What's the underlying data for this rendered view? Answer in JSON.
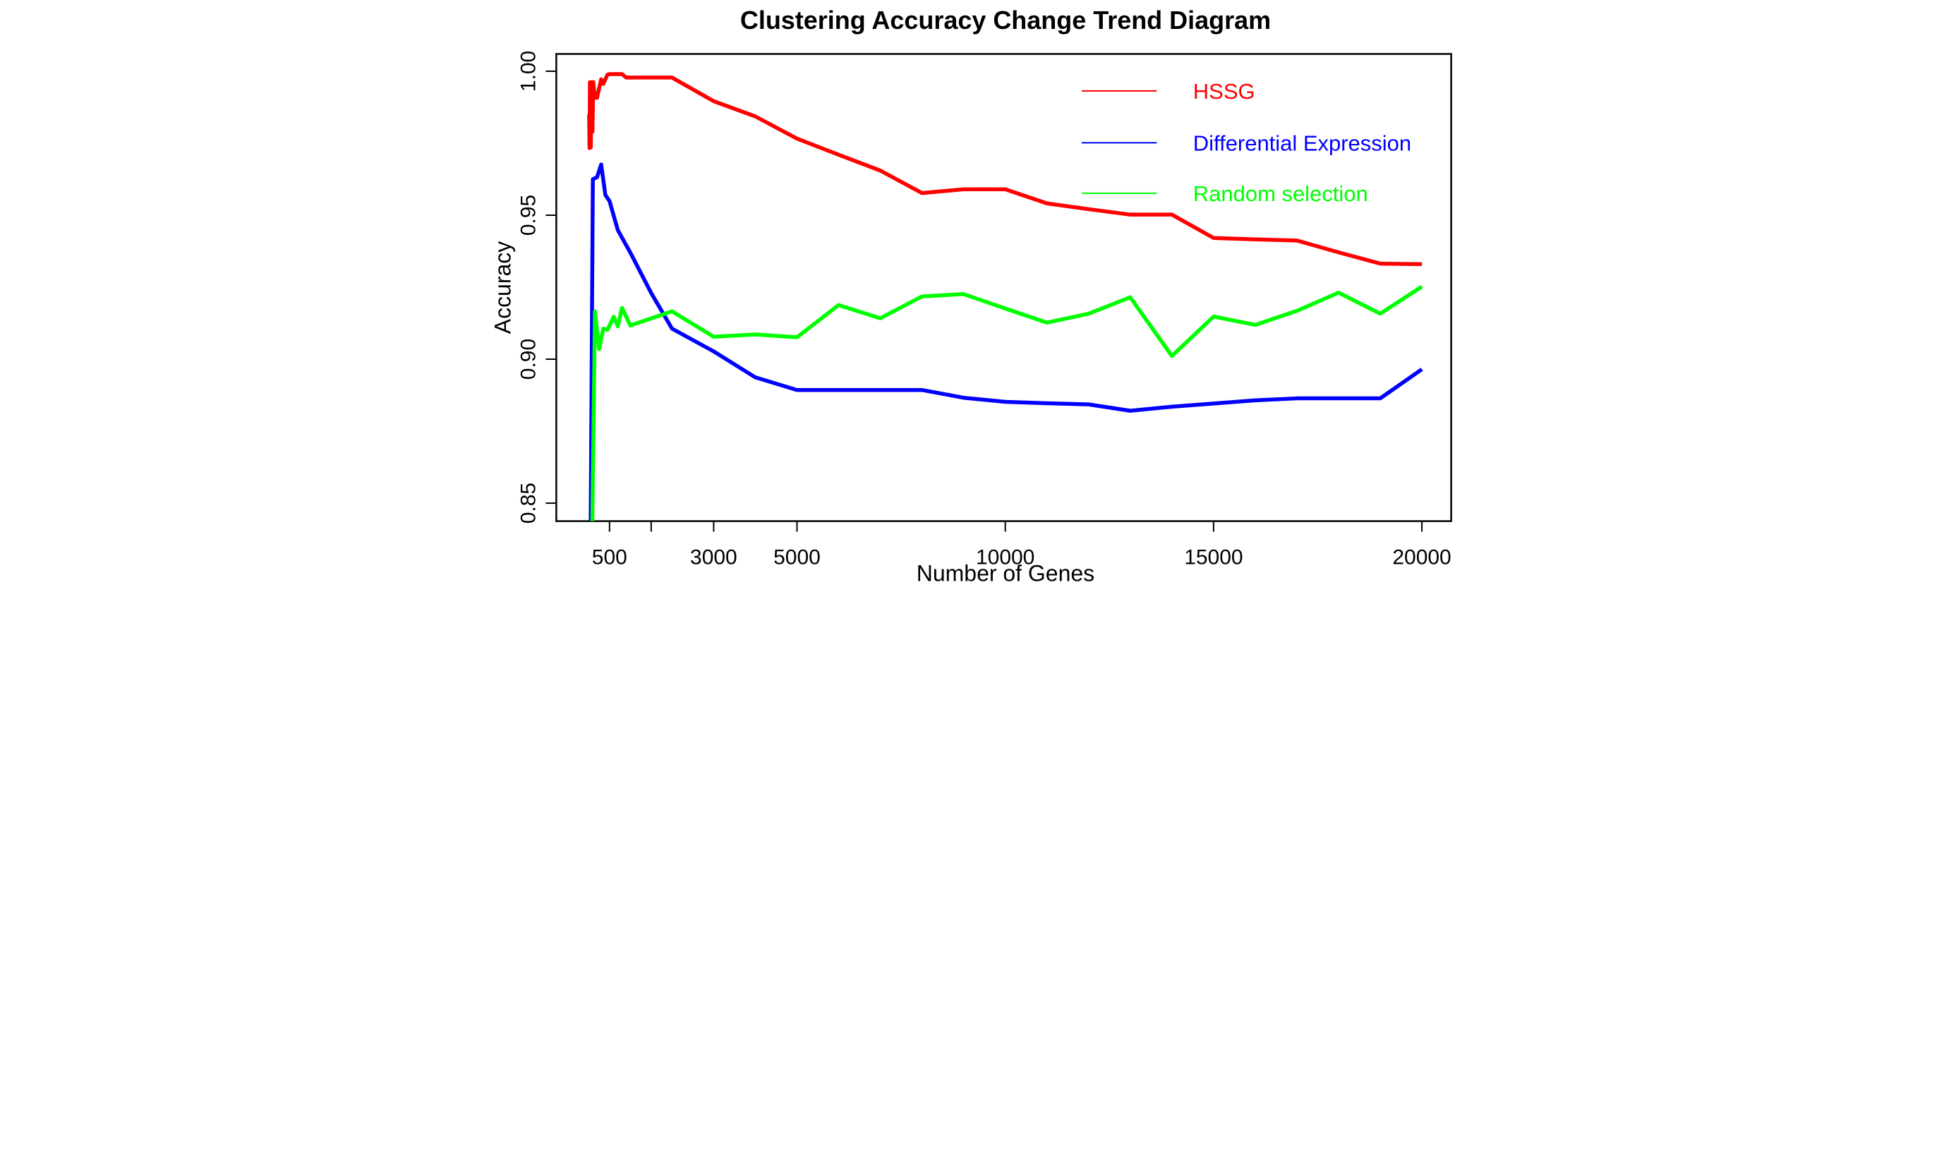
{
  "title": "Clustering Accuracy Change Trend Diagram",
  "axes": {
    "x_label": "Number of Genes",
    "y_label": "Accuracy",
    "x_ticks": [
      {
        "value": 500,
        "label": "500"
      },
      {
        "value": 1500,
        "label": ""
      },
      {
        "value": 3000,
        "label": "3000"
      },
      {
        "value": 5000,
        "label": "5000"
      },
      {
        "value": 10000,
        "label": "10000"
      },
      {
        "value": 15000,
        "label": "15000"
      },
      {
        "value": 20000,
        "label": "20000"
      }
    ],
    "y_ticks": [
      {
        "value": 1.0,
        "label": "1.00"
      },
      {
        "value": 0.95,
        "label": "0.95"
      },
      {
        "value": 0.9,
        "label": "0.90"
      },
      {
        "value": 0.85,
        "label": "0.85"
      }
    ]
  },
  "legend": [
    {
      "label": "HSSG",
      "color": "#ff0000"
    },
    {
      "label": "Differential Expression",
      "color": "#0000ff"
    },
    {
      "label": "Random selection",
      "color": "#00ff00"
    }
  ],
  "chart_data": {
    "type": "line",
    "title": "Clustering Accuracy Change Trend Diagram",
    "xlabel": "Number of Genes",
    "ylabel": "Accuracy",
    "xlim": [
      -700,
      20800
    ],
    "ylim": [
      0.8438,
      1.0062
    ],
    "grid": false,
    "legend_position": "top-right",
    "note": "values read from pixels; accuracies approximate to ~0.001",
    "series": [
      {
        "name": "HSSG",
        "color": "#ff0000",
        "points": [
          [
            10,
            0.985
          ],
          [
            20,
            0.9733
          ],
          [
            30,
            0.9962
          ],
          [
            50,
            0.9735
          ],
          [
            70,
            0.9962
          ],
          [
            90,
            0.979
          ],
          [
            110,
            0.9962
          ],
          [
            150,
            0.9908
          ],
          [
            200,
            0.9908
          ],
          [
            300,
            0.9972
          ],
          [
            350,
            0.9956
          ],
          [
            450,
            0.9988
          ],
          [
            500,
            0.999
          ],
          [
            700,
            0.999
          ],
          [
            800,
            0.999
          ],
          [
            900,
            0.9978
          ],
          [
            1000,
            0.9978
          ],
          [
            1500,
            0.9978
          ],
          [
            2000,
            0.9978
          ],
          [
            3000,
            0.9896
          ],
          [
            4000,
            0.9843
          ],
          [
            5000,
            0.9766
          ],
          [
            6000,
            0.971
          ],
          [
            7000,
            0.9655
          ],
          [
            8000,
            0.9577
          ],
          [
            9000,
            0.959
          ],
          [
            10000,
            0.959
          ],
          [
            11000,
            0.9541
          ],
          [
            12000,
            0.9521
          ],
          [
            13000,
            0.9502
          ],
          [
            14000,
            0.9502
          ],
          [
            15000,
            0.9421
          ],
          [
            16000,
            0.9416
          ],
          [
            17000,
            0.9412
          ],
          [
            18000,
            0.9371
          ],
          [
            19000,
            0.9332
          ],
          [
            20000,
            0.933
          ]
        ]
      },
      {
        "name": "Differential Expression",
        "color": "#0000ff",
        "points": [
          [
            20,
            0.78
          ],
          [
            100,
            0.9625
          ],
          [
            200,
            0.9632
          ],
          [
            300,
            0.9676
          ],
          [
            400,
            0.957
          ],
          [
            500,
            0.9549
          ],
          [
            700,
            0.9448
          ],
          [
            1000,
            0.937
          ],
          [
            1500,
            0.923
          ],
          [
            2000,
            0.9106
          ],
          [
            3000,
            0.9027
          ],
          [
            4000,
            0.8937
          ],
          [
            5000,
            0.8893
          ],
          [
            6000,
            0.8893
          ],
          [
            7000,
            0.8893
          ],
          [
            8000,
            0.8893
          ],
          [
            9000,
            0.8866
          ],
          [
            10000,
            0.8852
          ],
          [
            11000,
            0.8847
          ],
          [
            12000,
            0.8843
          ],
          [
            13000,
            0.8821
          ],
          [
            14000,
            0.8835
          ],
          [
            15000,
            0.8846
          ],
          [
            16000,
            0.8857
          ],
          [
            17000,
            0.8864
          ],
          [
            18000,
            0.8864
          ],
          [
            19000,
            0.8864
          ],
          [
            20000,
            0.8965
          ]
        ]
      },
      {
        "name": "Random selection",
        "color": "#00ff00",
        "points": [
          [
            50,
            0.8
          ],
          [
            150,
            0.9166
          ],
          [
            250,
            0.9035
          ],
          [
            350,
            0.9106
          ],
          [
            450,
            0.9102
          ],
          [
            600,
            0.9147
          ],
          [
            700,
            0.9114
          ],
          [
            800,
            0.9178
          ],
          [
            1000,
            0.9117
          ],
          [
            2000,
            0.9166
          ],
          [
            3000,
            0.9078
          ],
          [
            4000,
            0.9086
          ],
          [
            5000,
            0.9076
          ],
          [
            6000,
            0.9188
          ],
          [
            7000,
            0.9142
          ],
          [
            8000,
            0.9218
          ],
          [
            9000,
            0.9226
          ],
          [
            10000,
            0.9176
          ],
          [
            11000,
            0.9127
          ],
          [
            12000,
            0.9158
          ],
          [
            13000,
            0.9215
          ],
          [
            14000,
            0.9011
          ],
          [
            15000,
            0.9148
          ],
          [
            16000,
            0.9119
          ],
          [
            17000,
            0.9168
          ],
          [
            18000,
            0.9231
          ],
          [
            19000,
            0.9158
          ],
          [
            20000,
            0.9252
          ]
        ]
      }
    ]
  }
}
